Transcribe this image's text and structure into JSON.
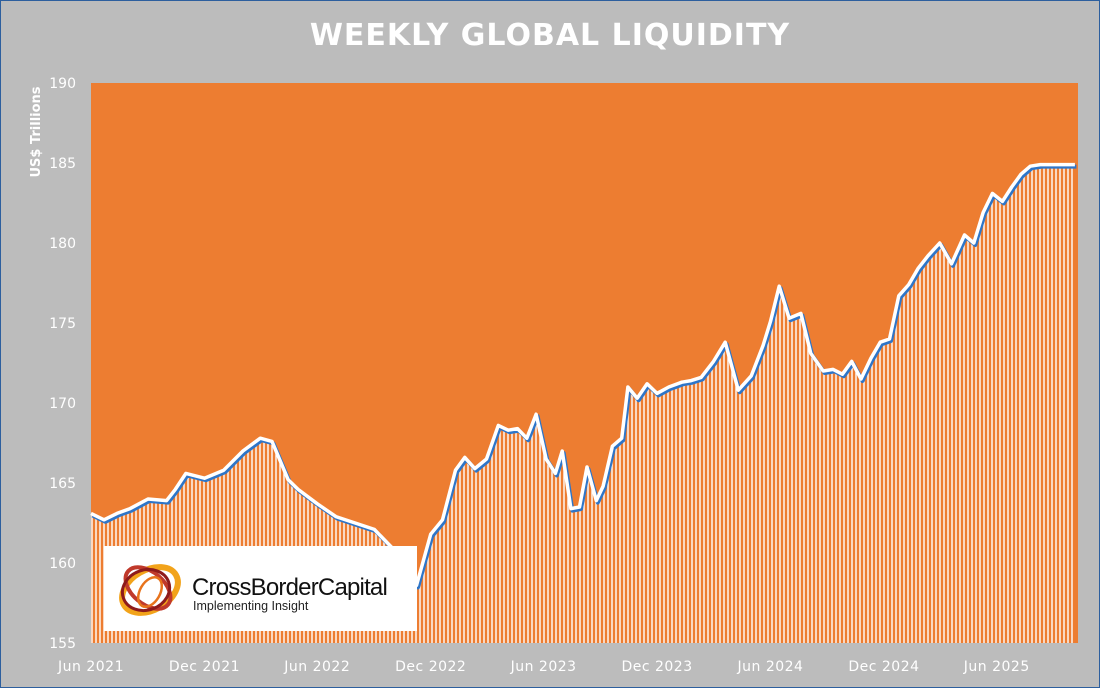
{
  "chart_data": {
    "type": "area",
    "title": "WEEKLY GLOBAL LIQUIDITY",
    "ylabel": "US$ Trillions",
    "xlabel": "",
    "ylim": [
      155,
      190
    ],
    "yticks": [
      155,
      160,
      165,
      170,
      175,
      180,
      185,
      190
    ],
    "xlim": [
      "2021-06-01",
      "2025-10-10"
    ],
    "x_ticks": [
      {
        "label": "Jun 2021",
        "date": "2021-06-01"
      },
      {
        "label": "Dec 2021",
        "date": "2021-12-01"
      },
      {
        "label": "Jun 2022",
        "date": "2022-06-01"
      },
      {
        "label": "Dec 2022",
        "date": "2022-12-01"
      },
      {
        "label": "Jun 2023",
        "date": "2023-06-01"
      },
      {
        "label": "Dec 2023",
        "date": "2023-12-01"
      },
      {
        "label": "Jun 2024",
        "date": "2024-06-01"
      },
      {
        "label": "Dec 2024",
        "date": "2024-12-01"
      },
      {
        "label": "Jun 2025",
        "date": "2025-06-01"
      }
    ],
    "series": [
      {
        "name": "",
        "x": [
          "2021-06-01",
          "2021-06-22",
          "2021-07-13",
          "2021-08-03",
          "2021-09-01",
          "2021-10-01",
          "2021-10-15",
          "2021-11-01",
          "2021-12-01",
          "2022-01-01",
          "2022-02-01",
          "2022-03-01",
          "2022-03-20",
          "2022-04-15",
          "2022-05-01",
          "2022-06-01",
          "2022-07-01",
          "2022-08-01",
          "2022-09-01",
          "2022-10-01",
          "2022-10-25",
          "2022-11-08",
          "2022-12-01",
          "2022-12-20",
          "2023-01-10",
          "2023-01-25",
          "2023-02-10",
          "2023-03-01",
          "2023-03-20",
          "2023-04-05",
          "2023-04-20",
          "2023-05-05",
          "2023-05-20",
          "2023-06-05",
          "2023-06-20",
          "2023-07-01",
          "2023-07-15",
          "2023-07-29",
          "2023-08-10",
          "2023-08-25",
          "2023-09-05",
          "2023-09-20",
          "2023-10-05",
          "2023-10-15",
          "2023-10-30",
          "2023-11-15",
          "2023-12-01",
          "2023-12-20",
          "2024-01-10",
          "2024-01-25",
          "2024-02-10",
          "2024-03-01",
          "2024-03-20",
          "2024-04-10",
          "2024-05-01",
          "2024-05-20",
          "2024-06-01",
          "2024-06-15",
          "2024-07-01",
          "2024-07-20",
          "2024-08-05",
          "2024-08-25",
          "2024-09-10",
          "2024-09-25",
          "2024-10-10",
          "2024-10-25",
          "2024-11-10",
          "2024-11-25",
          "2024-12-10",
          "2024-12-25",
          "2025-01-10",
          "2025-01-25",
          "2025-02-10",
          "2025-03-01",
          "2025-03-20",
          "2025-04-10",
          "2025-04-25",
          "2025-05-10",
          "2025-05-25",
          "2025-06-10",
          "2025-06-25",
          "2025-07-10",
          "2025-07-25",
          "2025-08-10",
          "2025-08-25",
          "2025-09-10",
          "2025-09-25",
          "2025-10-05"
        ],
        "values": [
          163.1,
          162.7,
          163.1,
          163.4,
          164.0,
          163.9,
          164.6,
          165.6,
          165.3,
          165.8,
          167.0,
          167.8,
          167.6,
          165.2,
          164.6,
          163.7,
          162.9,
          162.5,
          162.1,
          160.9,
          159.8,
          158.6,
          161.8,
          162.7,
          165.8,
          166.6,
          165.9,
          166.5,
          168.6,
          168.3,
          168.4,
          167.8,
          169.3,
          166.5,
          165.6,
          167.0,
          163.4,
          163.5,
          166.0,
          163.9,
          164.8,
          167.3,
          167.8,
          171.0,
          170.3,
          171.2,
          170.6,
          171.0,
          171.3,
          171.4,
          171.6,
          172.6,
          173.8,
          170.8,
          171.7,
          173.6,
          175.1,
          177.3,
          175.3,
          175.6,
          173.1,
          172.0,
          172.1,
          171.8,
          172.6,
          171.5,
          172.8,
          173.8,
          174.0,
          176.7,
          177.4,
          178.4,
          179.2,
          180.0,
          178.7,
          180.5,
          180.0,
          181.9,
          183.1,
          182.6,
          183.5,
          184.3,
          184.8,
          184.9,
          184.9,
          184.9,
          184.9,
          184.9
        ]
      }
    ],
    "grid": false,
    "legend": "none",
    "colors": {
      "plot_bg": "#ed7d31",
      "fill_lines": "#ffffff",
      "series_line": "#ffffff",
      "series_shadow": "#2e75c8",
      "page_bg": "#bcbcbc",
      "text": "#ffffff"
    }
  },
  "logo": {
    "name": "CrossBorderCapital",
    "tagline": "Implementing Insight"
  }
}
